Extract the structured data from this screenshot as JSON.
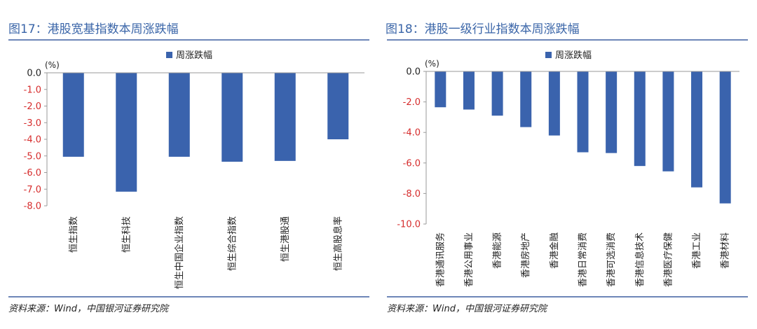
{
  "chart_data": [
    {
      "type": "bar",
      "figure_title": "图17：港股宽基指数本周涨跌幅",
      "legend": "周涨跌幅",
      "unit": "(%)",
      "categories": [
        "恒生指数",
        "恒生科技",
        "恒生中国企业指数",
        "恒生综合指数",
        "恒生港股通",
        "恒生高股息率"
      ],
      "series": [
        {
          "name": "周涨跌幅",
          "values": [
            -5.05,
            -7.15,
            -5.05,
            -5.35,
            -5.3,
            -4.0
          ]
        }
      ],
      "ylim": [
        -8.0,
        0.0
      ],
      "yticks": [
        0.0,
        -1.0,
        -2.0,
        -3.0,
        -4.0,
        -5.0,
        -6.0,
        -7.0,
        -8.0
      ],
      "yticklabels": [
        "0.0",
        "-1.0",
        "-2.0",
        "-3.0",
        "-4.0",
        "-5.0",
        "-6.0",
        "-7.0",
        "-8.0"
      ],
      "source": "资料来源：Wind，中国银河证券研究院"
    },
    {
      "type": "bar",
      "figure_title": "图18：港股一级行业指数本周涨跌幅",
      "legend": "周涨跌幅",
      "unit": "(%)",
      "categories": [
        "香港通讯服务",
        "香港公用事业",
        "香港能源",
        "香港房地产",
        "香港金融",
        "香港日常消费",
        "香港可选消费",
        "香港信息技术",
        "香港医疗保健",
        "香港工业",
        "香港材料"
      ],
      "series": [
        {
          "name": "周涨跌幅",
          "values": [
            -2.35,
            -2.5,
            -2.9,
            -3.65,
            -4.2,
            -5.3,
            -5.35,
            -6.2,
            -6.55,
            -7.6,
            -8.65
          ]
        }
      ],
      "ylim": [
        -10.0,
        0.0
      ],
      "yticks": [
        0.0,
        -2.0,
        -4.0,
        -6.0,
        -8.0,
        -10.0
      ],
      "yticklabels": [
        "0.0",
        "-2.0",
        "-4.0",
        "-6.0",
        "-8.0",
        "-10.0"
      ],
      "source": "资料来源：Wind，中国银河证券研究院"
    }
  ],
  "colors": {
    "bar": "#3a63ad",
    "title": "#3a65a8",
    "tick_negative": "#d62c2c",
    "tick_zero": "#222222",
    "axis": "#9a9a9a",
    "rule": "#6d86b8"
  }
}
